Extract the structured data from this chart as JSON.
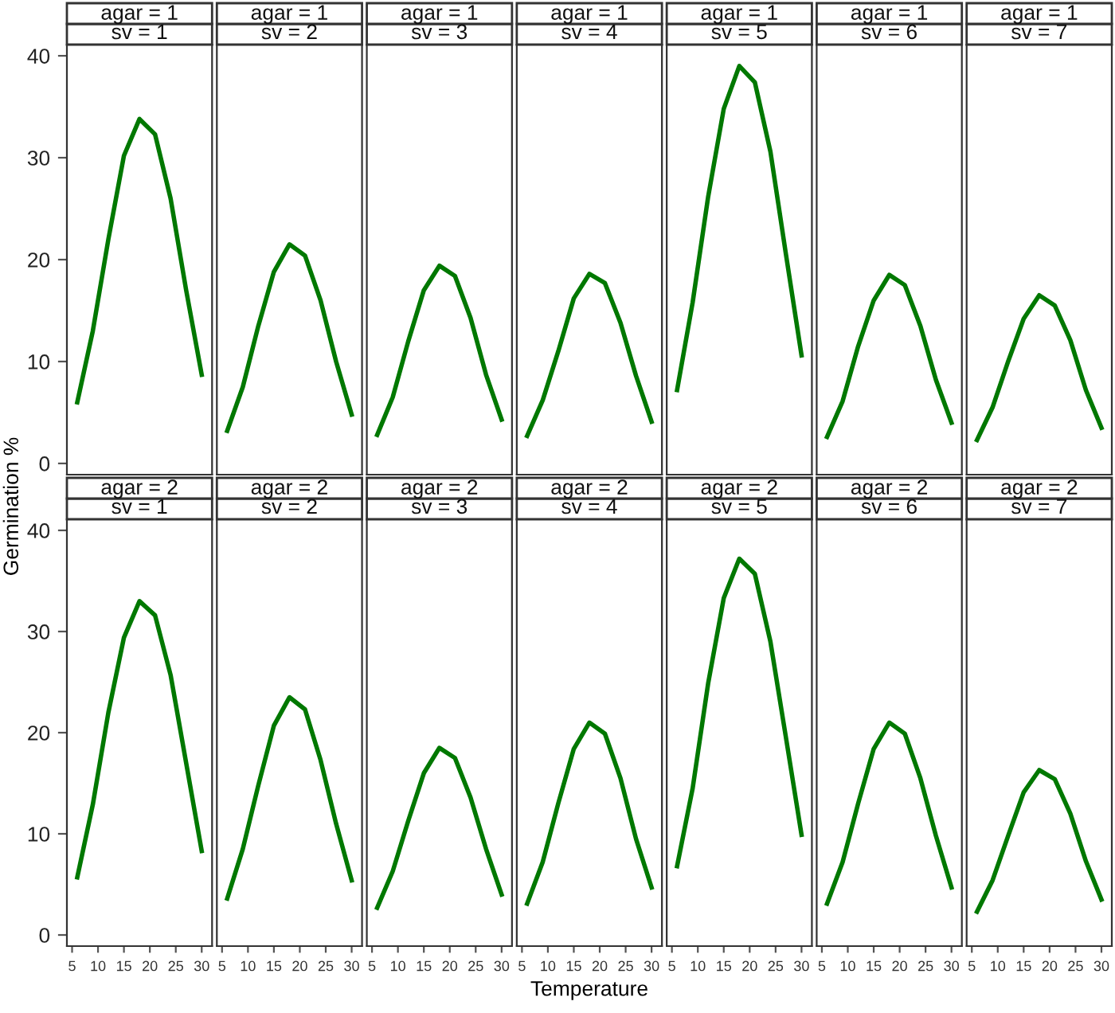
{
  "chart_data": [
    {
      "type": "line",
      "title": "agar = 1\nsv = 1",
      "ylabel": "Germination %",
      "x": [
        6,
        9,
        12,
        15,
        18,
        21,
        24,
        27,
        30
      ],
      "series": [
        {
          "color": "#007800",
          "values": [
            6,
            13,
            22,
            30.2,
            33.8,
            32.3,
            26,
            17,
            8.7
          ]
        }
      ],
      "xlim": [
        4,
        32
      ],
      "ylim": [
        -1.1,
        41.1
      ],
      "xticks": [
        5,
        10,
        15,
        20,
        25,
        30
      ],
      "yticks": [
        0,
        10,
        20,
        30,
        40
      ],
      "tick_labels": "y"
    },
    {
      "type": "line",
      "title": "agar = 1\nsv = 2",
      "x": [
        6,
        9,
        12,
        15,
        18,
        21,
        24,
        27,
        30
      ],
      "series": [
        {
          "color": "#007800",
          "values": [
            3.2,
            7.5,
            13.5,
            18.8,
            21.5,
            20.4,
            16,
            10,
            4.8
          ]
        }
      ],
      "xlim": [
        4,
        32
      ],
      "ylim": [
        -1.1,
        41.1
      ],
      "xticks": [
        5,
        10,
        15,
        20,
        25,
        30
      ],
      "yticks": [
        0,
        10,
        20,
        30,
        40
      ],
      "tick_labels": false
    },
    {
      "type": "line",
      "title": "agar = 1\nsv = 3",
      "x": [
        6,
        9,
        12,
        15,
        18,
        21,
        24,
        27,
        30
      ],
      "series": [
        {
          "color": "#007800",
          "values": [
            2.8,
            6.5,
            12,
            17,
            19.4,
            18.4,
            14.3,
            8.7,
            4.3
          ]
        }
      ],
      "xlim": [
        4,
        32
      ],
      "ylim": [
        -1.1,
        41.1
      ],
      "xticks": [
        5,
        10,
        15,
        20,
        25,
        30
      ],
      "yticks": [
        0,
        10,
        20,
        30,
        40
      ],
      "tick_labels": false
    },
    {
      "type": "line",
      "title": "agar = 1\nsv = 4",
      "x": [
        6,
        9,
        12,
        15,
        18,
        21,
        24,
        27,
        30
      ],
      "series": [
        {
          "color": "#007800",
          "values": [
            2.7,
            6.2,
            11,
            16.2,
            18.6,
            17.7,
            13.8,
            8.6,
            4.1
          ]
        }
      ],
      "xlim": [
        4,
        32
      ],
      "ylim": [
        -1.1,
        41.1
      ],
      "xticks": [
        5,
        10,
        15,
        20,
        25,
        30
      ],
      "yticks": [
        0,
        10,
        20,
        30,
        40
      ],
      "tick_labels": false
    },
    {
      "type": "line",
      "title": "agar = 1\nsv = 5",
      "x": [
        6,
        9,
        12,
        15,
        18,
        21,
        24,
        27,
        30
      ],
      "series": [
        {
          "color": "#007800",
          "values": [
            7.2,
            15.8,
            26.2,
            34.8,
            39,
            37.4,
            30.6,
            20.5,
            10.6
          ]
        }
      ],
      "xlim": [
        4,
        32
      ],
      "ylim": [
        -1.1,
        41.1
      ],
      "xticks": [
        5,
        10,
        15,
        20,
        25,
        30
      ],
      "yticks": [
        0,
        10,
        20,
        30,
        40
      ],
      "tick_labels": false
    },
    {
      "type": "line",
      "title": "agar = 1\nsv = 6",
      "x": [
        6,
        9,
        12,
        15,
        18,
        21,
        24,
        27,
        30
      ],
      "series": [
        {
          "color": "#007800",
          "values": [
            2.6,
            6.1,
            11.5,
            16,
            18.5,
            17.5,
            13.5,
            8.2,
            4
          ]
        }
      ],
      "xlim": [
        4,
        32
      ],
      "ylim": [
        -1.1,
        41.1
      ],
      "xticks": [
        5,
        10,
        15,
        20,
        25,
        30
      ],
      "yticks": [
        0,
        10,
        20,
        30,
        40
      ],
      "tick_labels": false
    },
    {
      "type": "line",
      "title": "agar = 1\nsv = 7",
      "x": [
        6,
        9,
        12,
        15,
        18,
        21,
        24,
        27,
        30
      ],
      "series": [
        {
          "color": "#007800",
          "values": [
            2.3,
            5.5,
            10,
            14.2,
            16.5,
            15.5,
            12.1,
            7.2,
            3.5
          ]
        }
      ],
      "xlim": [
        4,
        32
      ],
      "ylim": [
        -1.1,
        41.1
      ],
      "xticks": [
        5,
        10,
        15,
        20,
        25,
        30
      ],
      "yticks": [
        0,
        10,
        20,
        30,
        40
      ],
      "tick_labels": false
    },
    {
      "type": "line",
      "title": "agar = 2\nsv = 1",
      "x": [
        6,
        9,
        12,
        15,
        18,
        21,
        24,
        27,
        30
      ],
      "series": [
        {
          "color": "#007800",
          "values": [
            5.7,
            12.9,
            22,
            29.4,
            33,
            31.6,
            25.7,
            17,
            8.3
          ]
        }
      ],
      "xlim": [
        4,
        32
      ],
      "ylim": [
        -1.1,
        41.1
      ],
      "xticks": [
        5,
        10,
        15,
        20,
        25,
        30
      ],
      "yticks": [
        0,
        10,
        20,
        30,
        40
      ]
    },
    {
      "type": "line",
      "title": "agar = 2\nsv = 2",
      "x": [
        6,
        9,
        12,
        15,
        18,
        21,
        24,
        27,
        30
      ],
      "series": [
        {
          "color": "#007800",
          "values": [
            3.6,
            8.5,
            14.8,
            20.7,
            23.5,
            22.3,
            17.3,
            11,
            5.4
          ]
        }
      ],
      "xlim": [
        4,
        32
      ],
      "ylim": [
        -1.1,
        41.1
      ],
      "xticks": [
        5,
        10,
        15,
        20,
        25,
        30
      ],
      "yticks": [
        0,
        10,
        20,
        30,
        40
      ],
      "tick_labels": "x"
    },
    {
      "type": "line",
      "title": "agar = 2\nsv = 3",
      "x": [
        6,
        9,
        12,
        15,
        18,
        21,
        24,
        27,
        30
      ],
      "series": [
        {
          "color": "#007800",
          "values": [
            2.7,
            6.3,
            11.3,
            16,
            18.5,
            17.5,
            13.6,
            8.5,
            4
          ]
        }
      ],
      "xlim": [
        4,
        32
      ],
      "ylim": [
        -1.1,
        41.1
      ],
      "xticks": [
        5,
        10,
        15,
        20,
        25,
        30
      ],
      "yticks": [
        0,
        10,
        20,
        30,
        40
      ],
      "tick_labels": "x"
    },
    {
      "type": "line",
      "title": "agar = 2\nsv = 4",
      "xlabel": "Temperature",
      "x": [
        6,
        9,
        12,
        15,
        18,
        21,
        24,
        27,
        30
      ],
      "series": [
        {
          "color": "#007800",
          "values": [
            3.1,
            7.2,
            13,
            18.4,
            21,
            19.9,
            15.5,
            9.5,
            4.7
          ]
        }
      ],
      "xlim": [
        4,
        32
      ],
      "ylim": [
        -1.1,
        41.1
      ],
      "xticks": [
        5,
        10,
        15,
        20,
        25,
        30
      ],
      "yticks": [
        0,
        10,
        20,
        30,
        40
      ],
      "tick_labels": "x"
    },
    {
      "type": "line",
      "title": "agar = 2\nsv = 5",
      "x": [
        6,
        9,
        12,
        15,
        18,
        21,
        24,
        27,
        30
      ],
      "series": [
        {
          "color": "#007800",
          "values": [
            6.8,
            14.5,
            24.9,
            33.3,
            37.2,
            35.7,
            29,
            19.5,
            9.9
          ]
        }
      ],
      "xlim": [
        4,
        32
      ],
      "ylim": [
        -1.1,
        41.1
      ],
      "xticks": [
        5,
        10,
        15,
        20,
        25,
        30
      ],
      "yticks": [
        0,
        10,
        20,
        30,
        40
      ],
      "tick_labels": "x"
    },
    {
      "type": "line",
      "title": "agar = 2\nsv = 6",
      "x": [
        6,
        9,
        12,
        15,
        18,
        21,
        24,
        27,
        30
      ],
      "series": [
        {
          "color": "#007800",
          "values": [
            3.1,
            7.2,
            13,
            18.4,
            21,
            19.9,
            15.5,
            9.8,
            4.7
          ]
        }
      ],
      "xlim": [
        4,
        32
      ],
      "ylim": [
        -1.1,
        41.1
      ],
      "xticks": [
        5,
        10,
        15,
        20,
        25,
        30
      ],
      "yticks": [
        0,
        10,
        20,
        30,
        40
      ],
      "tick_labels": "x"
    },
    {
      "type": "line",
      "title": "agar = 2\nsv = 7",
      "x": [
        6,
        9,
        12,
        15,
        18,
        21,
        24,
        27,
        30
      ],
      "series": [
        {
          "color": "#007800",
          "values": [
            2.3,
            5.4,
            9.8,
            14.1,
            16.3,
            15.4,
            12,
            7.3,
            3.5
          ]
        }
      ],
      "xlim": [
        4,
        32
      ],
      "ylim": [
        -1.1,
        41.1
      ],
      "xticks": [
        5,
        10,
        15,
        20,
        25,
        30
      ],
      "yticks": [
        0,
        10,
        20,
        30,
        40
      ],
      "tick_labels": "x"
    }
  ]
}
